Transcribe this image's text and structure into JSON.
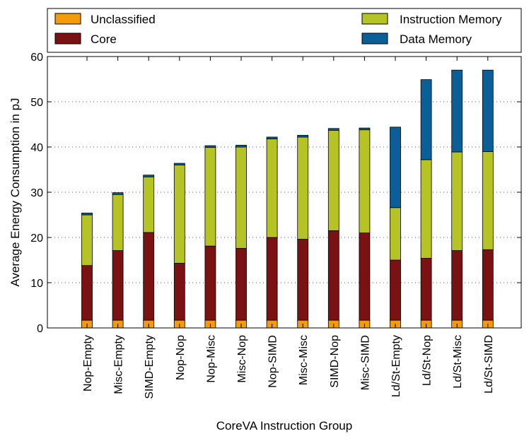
{
  "chart_data": {
    "type": "stacked-bar",
    "title": "",
    "xlabel": "CoreVA Instruction Group",
    "ylabel": "Average Energy Consumption in pJ",
    "ylim": [
      0,
      60
    ],
    "yticks": [
      0,
      10,
      20,
      30,
      40,
      50,
      60
    ],
    "grid": "horizontal dotted",
    "legend_position": "top",
    "categories": [
      "Nop-Empty",
      "Misc-Empty",
      "SIMD-Empty",
      "Nop-Nop",
      "Nop-Misc",
      "Misc-Nop",
      "Nop-SIMD",
      "Misc-Misc",
      "SIMD-Nop",
      "Misc-SIMD",
      "Ld/St-Empty",
      "Ld/St-Nop",
      "Ld/St-Misc",
      "Ld/St-SIMD"
    ],
    "series": [
      {
        "name": "Unclassified",
        "color": "#f39b0a",
        "values": [
          1.7,
          1.7,
          1.7,
          1.7,
          1.7,
          1.7,
          1.7,
          1.7,
          1.7,
          1.7,
          1.7,
          1.7,
          1.7,
          1.7
        ]
      },
      {
        "name": "Core",
        "color": "#7a1113",
        "values": [
          12.1,
          15.4,
          19.4,
          12.6,
          16.4,
          15.9,
          18.3,
          17.9,
          19.8,
          19.3,
          13.3,
          13.7,
          15.4,
          15.6
        ]
      },
      {
        "name": "Instruction Memory",
        "color": "#b5c325",
        "values": [
          11.2,
          12.4,
          12.3,
          21.7,
          21.8,
          22.4,
          21.8,
          22.6,
          22.2,
          22.8,
          11.6,
          21.8,
          21.8,
          21.7
        ]
      },
      {
        "name": "Data Memory",
        "color": "#0a5f96",
        "values": [
          0.4,
          0.4,
          0.4,
          0.4,
          0.4,
          0.4,
          0.4,
          0.4,
          0.4,
          0.4,
          17.8,
          17.7,
          18.1,
          18.0
        ]
      }
    ]
  }
}
